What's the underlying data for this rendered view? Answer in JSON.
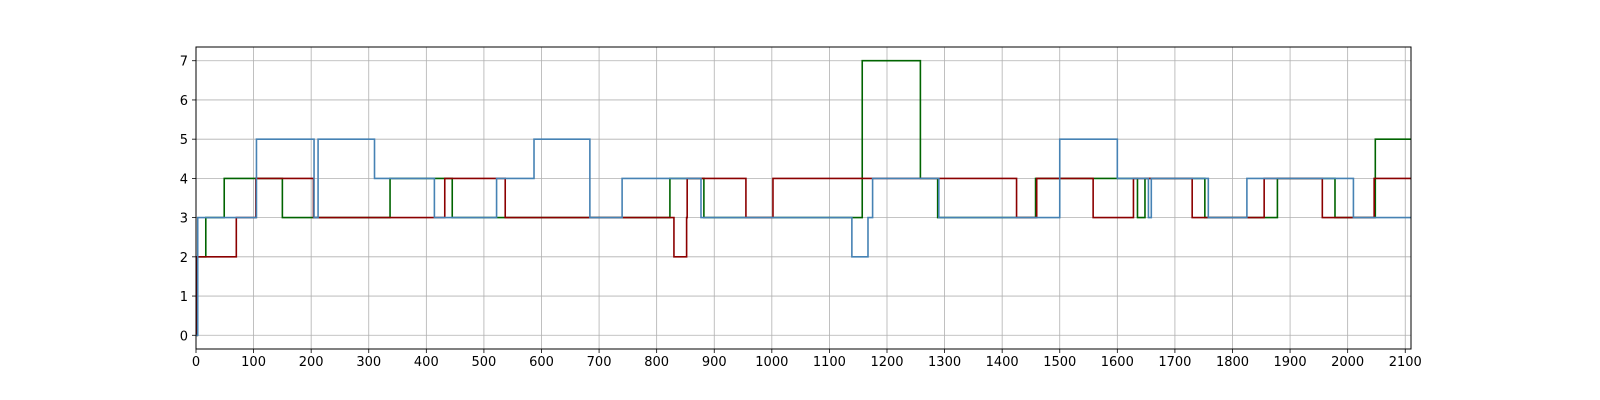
{
  "chart_data": {
    "type": "line",
    "step": "post",
    "title": "",
    "xlabel": "",
    "ylabel": "",
    "xlim": [
      0,
      2110
    ],
    "ylim": [
      -0.35,
      7.35
    ],
    "xticks": [
      0,
      100,
      200,
      300,
      400,
      500,
      600,
      700,
      800,
      900,
      1000,
      1100,
      1200,
      1300,
      1400,
      1500,
      1600,
      1700,
      1800,
      1900,
      2000,
      2100
    ],
    "yticks": [
      0,
      1,
      2,
      3,
      4,
      5,
      6,
      7
    ],
    "grid": true,
    "legend": "none",
    "series": [
      {
        "color": "#006400",
        "x": [
          0,
          2,
          17,
          49,
          150,
          206,
          330,
          337,
          438,
          445,
          520,
          532,
          820,
          823,
          882,
          983,
          1000,
          1155,
          1157,
          1256,
          1258,
          1285,
          1288,
          1455,
          1458,
          1635,
          1647,
          1648,
          1750,
          1752,
          1875,
          1878,
          1975,
          1978,
          2046,
          2048,
          2110
        ],
        "y": [
          0,
          2,
          3,
          4,
          3,
          3,
          3,
          4,
          4,
          3,
          3,
          3,
          3,
          4,
          3,
          3,
          3,
          3,
          7,
          7,
          4,
          4,
          3,
          3,
          4,
          3,
          3,
          4,
          4,
          3,
          3,
          4,
          4,
          3,
          3,
          5,
          5
        ]
      },
      {
        "color": "#8b0000",
        "x": [
          0,
          2,
          70,
          100,
          104,
          202,
          204,
          430,
          432,
          534,
          537,
          828,
          830,
          850,
          852,
          853,
          952,
          955,
          1000,
          1002,
          1422,
          1425,
          1458,
          1460,
          1555,
          1558,
          1625,
          1628,
          1727,
          1730,
          1853,
          1855,
          1953,
          1956,
          2044,
          2046,
          2110
        ],
        "y": [
          0,
          2,
          3,
          3,
          4,
          4,
          3,
          3,
          4,
          4,
          3,
          3,
          2,
          2,
          3,
          4,
          4,
          3,
          3,
          4,
          4,
          3,
          3,
          4,
          4,
          3,
          3,
          4,
          4,
          3,
          3,
          4,
          4,
          3,
          3,
          4,
          4
        ]
      },
      {
        "color": "#4682b4",
        "x": [
          0,
          3,
          100,
          105,
          203,
          205,
          210,
          212,
          308,
          310,
          412,
          414,
          520,
          522,
          585,
          587,
          682,
          684,
          738,
          740,
          875,
          877,
          1137,
          1139,
          1165,
          1167,
          1173,
          1175,
          1288,
          1290,
          1498,
          1500,
          1598,
          1600,
          1652,
          1654,
          1657,
          1659,
          1755,
          1758,
          1822,
          1825,
          2008,
          2010,
          2110
        ],
        "y": [
          0,
          3,
          3,
          5,
          5,
          3,
          3,
          5,
          5,
          4,
          4,
          3,
          3,
          4,
          4,
          5,
          5,
          3,
          3,
          4,
          4,
          3,
          3,
          2,
          2,
          3,
          3,
          4,
          4,
          3,
          3,
          5,
          5,
          4,
          4,
          3,
          3,
          4,
          4,
          3,
          3,
          4,
          4,
          3,
          3
        ]
      }
    ]
  }
}
